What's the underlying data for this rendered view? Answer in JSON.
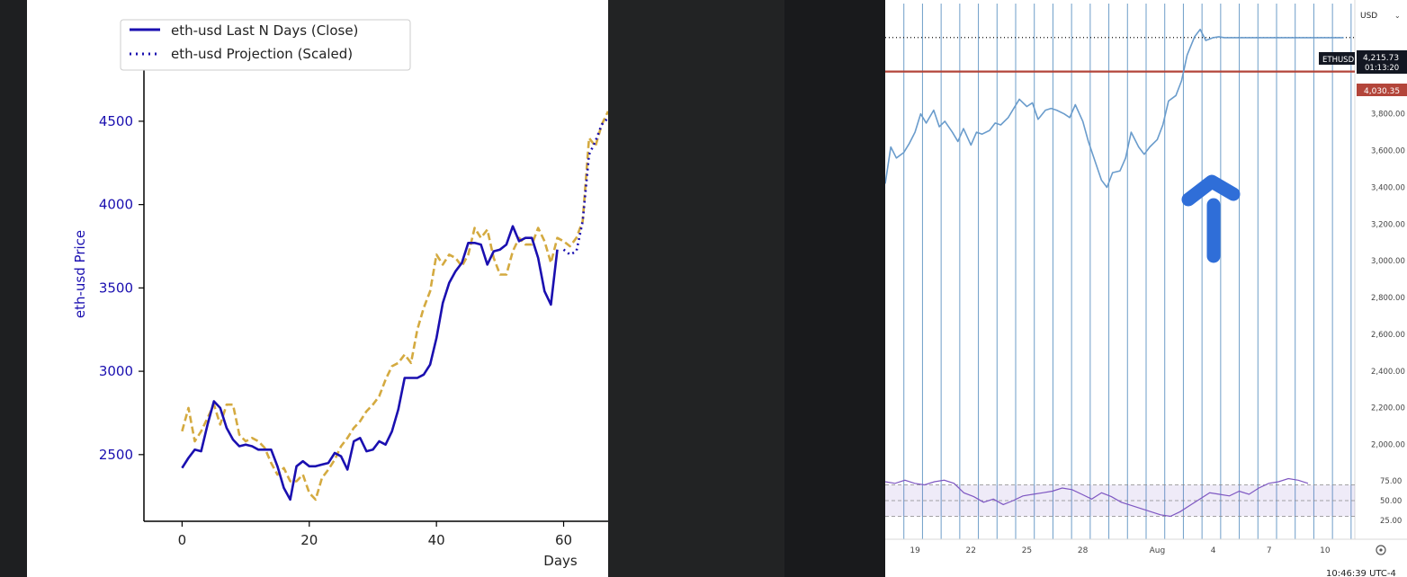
{
  "chart_data": [
    {
      "type": "line",
      "xlabel": "Days",
      "ylabel": "eth-usd Price",
      "xlim": [
        -6,
        67
      ],
      "ylim": [
        2100,
        4850
      ],
      "x_ticks": [
        0,
        20,
        40,
        60
      ],
      "y_ticks": [
        2500,
        3000,
        3500,
        4000,
        4500
      ],
      "legend_placement": "top-left",
      "series": [
        {
          "name": "eth-usd Last N Days (Close)",
          "color": "#1a0fb0",
          "style": "solid",
          "x": [
            0,
            1,
            2,
            3,
            4,
            5,
            6,
            7,
            8,
            9,
            10,
            11,
            12,
            13,
            14,
            15,
            16,
            17,
            18,
            19,
            20,
            21,
            22,
            23,
            24,
            25,
            26,
            27,
            28,
            29,
            30,
            31,
            32,
            33,
            34,
            35,
            36,
            37,
            38,
            39,
            40,
            41,
            42,
            43,
            44,
            45,
            46,
            47,
            48,
            49,
            50,
            51,
            52,
            53,
            54,
            55,
            56,
            57,
            58,
            59
          ],
          "values": [
            2420,
            2480,
            2530,
            2520,
            2680,
            2820,
            2780,
            2660,
            2590,
            2550,
            2560,
            2550,
            2530,
            2530,
            2530,
            2430,
            2300,
            2230,
            2430,
            2460,
            2430,
            2430,
            2440,
            2450,
            2510,
            2490,
            2410,
            2580,
            2600,
            2520,
            2530,
            2580,
            2560,
            2640,
            2770,
            2960,
            2960,
            2960,
            2980,
            3040,
            3200,
            3410,
            3530,
            3600,
            3650,
            3770,
            3770,
            3760,
            3640,
            3720,
            3730,
            3760,
            3870,
            3780,
            3800,
            3800,
            3680,
            3480,
            3400,
            3730
          ]
        },
        {
          "name": "eth-usd Projection (Scaled)",
          "color": "#1a0fb0",
          "style": "dotted",
          "x": [
            60,
            61,
            62,
            63,
            64,
            65,
            66,
            67
          ],
          "values": [
            3730,
            3700,
            3720,
            3900,
            4300,
            4380,
            4480,
            4520
          ]
        },
        {
          "color": "#d4aa40",
          "style": "dashed",
          "x": [
            0,
            1,
            2,
            3,
            4,
            5,
            6,
            7,
            8,
            9,
            10,
            11,
            12,
            13,
            14,
            15,
            16,
            17,
            18,
            19,
            20,
            21,
            22,
            23,
            24,
            25,
            26,
            27,
            28,
            29,
            30,
            31,
            32,
            33,
            34,
            35,
            36,
            37,
            38,
            39,
            40,
            41,
            42,
            43,
            44,
            45,
            46,
            47,
            48,
            49,
            50,
            51,
            52,
            53,
            54,
            55,
            56,
            57,
            58,
            59,
            60,
            61,
            62,
            63,
            64,
            65,
            66,
            67
          ],
          "values": [
            2640,
            2780,
            2580,
            2640,
            2720,
            2800,
            2680,
            2800,
            2800,
            2620,
            2580,
            2600,
            2580,
            2540,
            2450,
            2380,
            2420,
            2340,
            2340,
            2380,
            2270,
            2230,
            2360,
            2410,
            2470,
            2550,
            2600,
            2660,
            2700,
            2760,
            2800,
            2850,
            2950,
            3030,
            3050,
            3100,
            3050,
            3250,
            3380,
            3480,
            3700,
            3640,
            3700,
            3680,
            3630,
            3700,
            3860,
            3800,
            3850,
            3680,
            3580,
            3580,
            3720,
            3800,
            3760,
            3760,
            3860,
            3780,
            3650,
            3800,
            3780,
            3750,
            3800,
            3900,
            4400,
            4350,
            4480,
            4560
          ]
        }
      ]
    },
    {
      "type": "line",
      "symbol": "ETHUSD",
      "currency": "USD",
      "last_price": "4,215.73",
      "countdown": "01:13:20",
      "hline_value": "4,030.35",
      "hline_price": 4030.35,
      "last_price_value": 4215.73,
      "ylim": [
        1900,
        4420
      ],
      "y_ticks": [
        2000,
        2200,
        2400,
        2600,
        2800,
        3000,
        3200,
        3400,
        3600,
        3800
      ],
      "y_tick_labels": [
        "2,000.00",
        "2,200.00",
        "2,400.00",
        "2,600.00",
        "2,800.00",
        "3,000.00",
        "3,200.00",
        "3,400.00",
        "3,600.00",
        "3,800.00"
      ],
      "x_tick_labels": [
        "19",
        "22",
        "25",
        "28",
        "Aug",
        "4",
        "7",
        "10"
      ],
      "x_ticks": [
        0,
        3,
        6,
        9,
        13,
        16,
        19,
        22
      ],
      "xlim": [
        -1.6,
        23.6
      ],
      "series": [
        {
          "color": "#6a9ccc",
          "style": "solid",
          "x": [
            -1.6,
            -1.3,
            -1,
            -0.6,
            -0.3,
            0,
            0.3,
            0.6,
            1,
            1.3,
            1.6,
            2,
            2.3,
            2.6,
            3,
            3.3,
            3.6,
            4,
            4.3,
            4.6,
            5,
            5.3,
            5.6,
            6,
            6.3,
            6.6,
            7,
            7.3,
            7.6,
            8,
            8.3,
            8.6,
            9,
            9.3,
            9.6,
            10,
            10.3,
            10.6,
            11,
            11.3,
            11.6,
            12,
            12.3,
            12.6,
            13,
            13.3,
            13.6,
            14,
            14.3,
            14.6,
            15,
            15.3,
            15.6,
            16,
            16.3,
            16.6,
            17,
            17.3,
            17.6,
            18,
            18.3,
            18.6,
            19,
            19.3,
            19.6,
            20,
            20.3,
            20.6,
            21,
            21.3,
            21.6,
            22,
            22.3,
            22.6,
            23
          ],
          "values": [
            3420,
            3620,
            3560,
            3590,
            3640,
            3700,
            3800,
            3750,
            3820,
            3730,
            3760,
            3700,
            3650,
            3720,
            3630,
            3700,
            3690,
            3710,
            3750,
            3740,
            3780,
            3830,
            3880,
            3840,
            3860,
            3770,
            3820,
            3830,
            3820,
            3800,
            3780,
            3850,
            3760,
            3650,
            3560,
            3440,
            3400,
            3480,
            3490,
            3560,
            3700,
            3620,
            3580,
            3620,
            3660,
            3740,
            3870,
            3900,
            3980,
            4120,
            4220,
            4260,
            4200,
            4215,
            4220,
            4215,
            4215,
            4215,
            4215,
            4215,
            4215,
            4215,
            4215,
            4215,
            4215,
            4215,
            4215,
            4215,
            4215,
            4215,
            4215,
            4215,
            4215,
            4215,
            4215
          ]
        }
      ],
      "rsi": {
        "ylim": [
          10,
          90
        ],
        "levels": [
          70,
          50,
          30
        ],
        "tick_labels": [
          "75.00",
          "50.00",
          "25.00"
        ],
        "tick_values": [
          75,
          50,
          25
        ],
        "values": [
          74,
          72,
          76,
          72,
          70,
          74,
          76,
          72,
          60,
          55,
          48,
          52,
          45,
          50,
          56,
          58,
          60,
          62,
          66,
          64,
          58,
          52,
          60,
          55,
          48,
          44,
          40,
          36,
          32,
          30,
          36,
          44,
          52,
          60,
          58,
          56,
          62,
          58,
          66,
          72,
          74,
          78,
          76,
          72
        ]
      },
      "annotation": "up-arrow",
      "accent_arrow_color": "#2f6ed8",
      "hline_color": "#b3453a"
    }
  ],
  "status_bar": {
    "time": "10:46:39 UTC-4"
  },
  "price_scale": {
    "rsi_settings_icon": "gear-icon"
  }
}
